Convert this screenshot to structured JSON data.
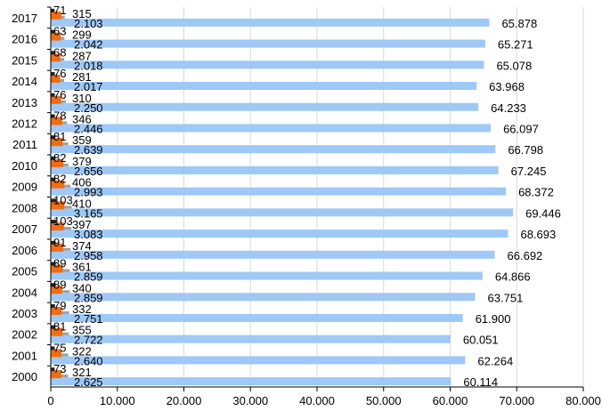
{
  "chart_data": {
    "type": "bar",
    "orientation": "horizontal",
    "categories": [
      "2000",
      "2001",
      "2002",
      "2003",
      "2004",
      "2005",
      "2006",
      "2007",
      "2008",
      "2009",
      "2010",
      "2011",
      "2012",
      "2013",
      "2014",
      "2015",
      "2016",
      "2017"
    ],
    "series": [
      {
        "color": "#9ec8f6",
        "values": [
          60.114,
          62.264,
          60.051,
          61.9,
          63.751,
          64.866,
          66.692,
          68.693,
          69.446,
          68.372,
          67.245,
          66.798,
          66.097,
          64.233,
          63.968,
          65.078,
          65.271,
          65.878
        ],
        "labels": [
          "60.114",
          "62.264",
          "60.051",
          "61.900",
          "63.751",
          "64.866",
          "66.692",
          "68.693",
          "69.446",
          "68.372",
          "67.245",
          "66.798",
          "66.097",
          "64.233",
          "63.968",
          "65.078",
          "65.271",
          "65.878"
        ]
      },
      {
        "color": "#a0a0a0",
        "values": [
          2.625,
          2.64,
          2.722,
          2.751,
          2.859,
          2.859,
          2.958,
          3.083,
          3.165,
          2.993,
          2.656,
          2.639,
          2.446,
          2.25,
          2.017,
          2.018,
          2.042,
          2.103
        ],
        "labels": [
          "2.625",
          "2.640",
          "2.722",
          "2.751",
          "2.859",
          "2.859",
          "2.958",
          "3.083",
          "3.165",
          "2.993",
          "2.656",
          "2.639",
          "2.446",
          "2.250",
          "2.017",
          "2.018",
          "2.042",
          "2.103"
        ]
      },
      {
        "color": "#f26d10",
        "values": [
          321,
          322,
          355,
          332,
          340,
          361,
          374,
          397,
          410,
          406,
          379,
          359,
          346,
          310,
          281,
          287,
          299,
          315
        ],
        "labels": [
          "321",
          "322",
          "355",
          "332",
          "340",
          "361",
          "374",
          "397",
          "410",
          "406",
          "379",
          "359",
          "346",
          "310",
          "281",
          "287",
          "299",
          "315"
        ]
      },
      {
        "color": "#222222",
        "values": [
          73,
          75,
          81,
          79,
          89,
          89,
          91,
          103,
          103,
          82,
          82,
          81,
          78,
          76,
          76,
          68,
          63,
          71
        ],
        "labels": [
          "73",
          "75",
          "81",
          "79",
          "89",
          "89",
          "91",
          "103",
          "103",
          "82",
          "82",
          "81",
          "78",
          "76",
          "76",
          "68",
          "63",
          "71"
        ]
      }
    ],
    "x_ticks": [
      "0",
      "10.000",
      "20.000",
      "30.000",
      "40.000",
      "50.000",
      "60.000",
      "70.000",
      "80.000"
    ],
    "xlim": [
      0,
      80000
    ],
    "grid": "vertical"
  }
}
